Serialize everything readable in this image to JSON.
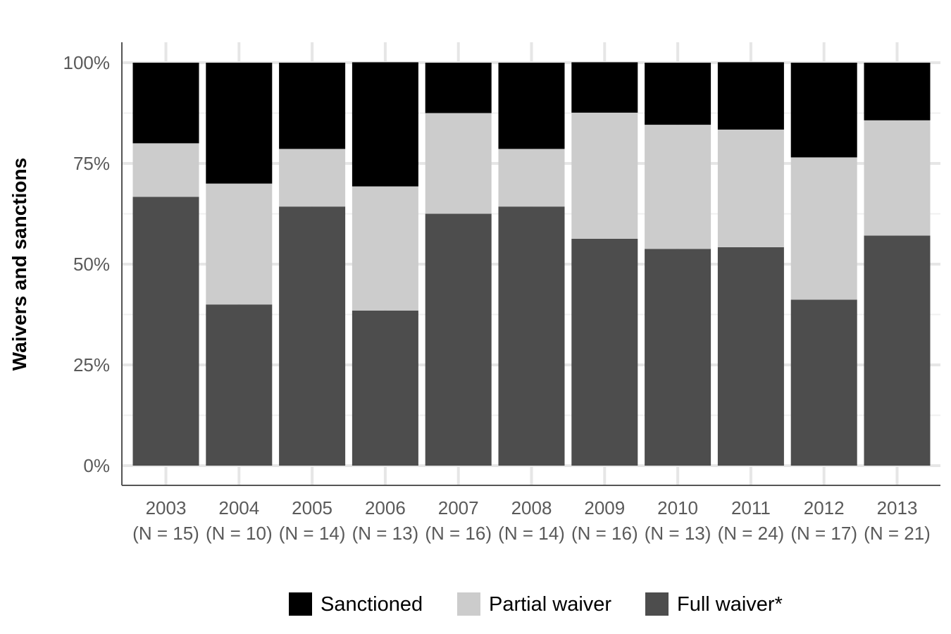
{
  "chart_data": {
    "type": "bar",
    "stacked": true,
    "percent": true,
    "ylabel": "Waivers and sanctions",
    "xlabel": "",
    "ylim": [
      0,
      100
    ],
    "yticks": [
      "0%",
      "25%",
      "50%",
      "75%",
      "100%"
    ],
    "grid": true,
    "legend_position": "bottom",
    "categories": [
      "2003",
      "2004",
      "2005",
      "2006",
      "2007",
      "2008",
      "2009",
      "2010",
      "2011",
      "2012",
      "2013"
    ],
    "category_subtitles": [
      "(N = 15)",
      "(N = 10)",
      "(N = 14)",
      "(N = 13)",
      "(N = 16)",
      "(N = 14)",
      "(N = 16)",
      "(N = 13)",
      "(N = 24)",
      "(N = 17)",
      "(N = 21)"
    ],
    "series": [
      {
        "name": "Full waiver*",
        "color": "#4d4d4d",
        "values": [
          66.7,
          40.0,
          64.3,
          38.5,
          62.5,
          64.3,
          56.3,
          53.8,
          54.2,
          41.2,
          57.1
        ]
      },
      {
        "name": "Partial waiver",
        "color": "#cccccc",
        "values": [
          13.3,
          30.0,
          14.3,
          30.8,
          25.0,
          14.3,
          31.3,
          30.8,
          29.2,
          35.3,
          28.6
        ]
      },
      {
        "name": "Sanctioned",
        "color": "#000000",
        "values": [
          20.0,
          30.0,
          21.4,
          30.8,
          12.5,
          21.4,
          12.5,
          15.4,
          16.7,
          23.5,
          14.3
        ]
      }
    ],
    "legend_order": [
      "Sanctioned",
      "Partial waiver",
      "Full waiver*"
    ]
  }
}
